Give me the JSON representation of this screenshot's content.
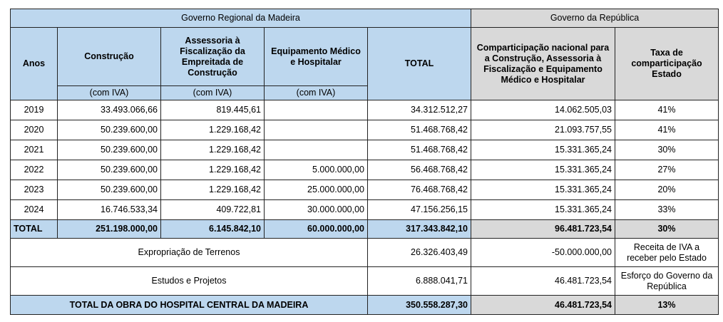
{
  "header": {
    "groups": [
      "Governo Regional da Madeira",
      "Governo da República"
    ],
    "columns": [
      "Anos",
      "Construção",
      "Assessoria à Fiscalização da Empreitada de Construção",
      "Equipamento Médico e Hospitalar",
      "TOTAL",
      "Comparticipação nacional para a Construção, Assessoria à Fiscalização e Equipamento Médico e Hospitalar",
      "Taxa de comparticipação Estado"
    ],
    "subheaders": [
      "(com IVA)",
      "(com IVA)",
      "(com IVA)"
    ]
  },
  "rows": [
    [
      "2019",
      "33.493.066,66",
      "819.445,61",
      null,
      "34.312.512,27",
      "14.062.505,03",
      "41%"
    ],
    [
      "2020",
      "50.239.600,00",
      "1.229.168,42",
      null,
      "51.468.768,42",
      "21.093.757,55",
      "41%"
    ],
    [
      "2021",
      "50.239.600,00",
      "1.229.168,42",
      null,
      "51.468.768,42",
      "15.331.365,24",
      "30%"
    ],
    [
      "2022",
      "50.239.600,00",
      "1.229.168,42",
      "5.000.000,00",
      "56.468.768,42",
      "15.331.365,24",
      "27%"
    ],
    [
      "2023",
      "50.239.600,00",
      "1.229.168,42",
      "25.000.000,00",
      "76.468.768,42",
      "15.331.365,24",
      "20%"
    ],
    [
      "2024",
      "16.746.533,34",
      "409.722,81",
      "30.000.000,00",
      "47.156.256,15",
      "15.331.365,24",
      "33%"
    ]
  ],
  "total_row": [
    "TOTAL",
    "251.198.000,00",
    "6.145.842,10",
    "60.000.000,00",
    "317.343.842,10",
    "96.481.723,54",
    "30%"
  ],
  "extra_rows": [
    {
      "label": "Expropriação de Terrenos",
      "total": "26.326.403,49",
      "republica": "-50.000.000,00",
      "note": "Receita de IVA a receber pelo Estado"
    },
    {
      "label": "Estudos e Projetos",
      "total": "6.888.041,71",
      "republica": "46.481.723,54",
      "note": "Esforço do Governo da República"
    }
  ],
  "grand_total": {
    "label": "TOTAL DA OBRA DO HOSPITAL CENTRAL DA MADEIRA",
    "total": "350.558.287,30",
    "republica": "46.481.723,54",
    "taxa": "13%"
  }
}
